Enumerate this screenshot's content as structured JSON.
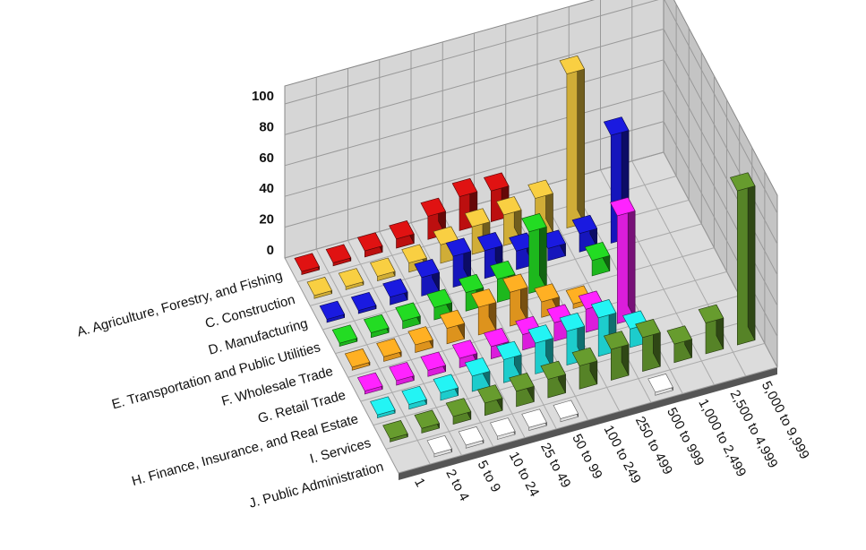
{
  "chart_data": {
    "type": "bar3d",
    "categories": [
      "1",
      "2 to 4",
      "5 to 9",
      "10 to 24",
      "25 to 49",
      "50 to 99",
      "100 to 249",
      "250 to 499",
      "500 to 999",
      "1,000 to 2,499",
      "2,500 to 4,999",
      "5,000 to 9,999"
    ],
    "series": [
      {
        "name": "A. Agriculture, Forestry, and Fishing",
        "color": "#cc1010",
        "values": [
          2,
          2,
          4,
          6,
          15,
          22,
          20,
          null,
          null,
          null,
          null,
          null
        ]
      },
      {
        "name": "C. Construction",
        "color": "#e2bc3c",
        "values": [
          2,
          2,
          3,
          6,
          12,
          18,
          20,
          25,
          100,
          null,
          null,
          null
        ]
      },
      {
        "name": "D. Manufacturing",
        "color": "#1818cc",
        "values": [
          2,
          2,
          5,
          12,
          20,
          18,
          12,
          8,
          12,
          70,
          null,
          null
        ]
      },
      {
        "name": "E. Transportation and Public Utilities",
        "color": "#20c820",
        "values": [
          2,
          3,
          5,
          8,
          12,
          15,
          40,
          null,
          10,
          null,
          null,
          null
        ]
      },
      {
        "name": "F. Wholesale Trade",
        "color": "#f0a020",
        "values": [
          2,
          3,
          5,
          10,
          18,
          22,
          10,
          3,
          null,
          null,
          null,
          null
        ]
      },
      {
        "name": "G. Retail Trade",
        "color": "#ee20ee",
        "values": [
          2,
          3,
          4,
          6,
          8,
          10,
          12,
          15,
          70,
          null,
          null,
          null
        ]
      },
      {
        "name": "H. Finance, Insurance, and Real Estate",
        "color": "#20dede",
        "values": [
          2,
          3,
          5,
          10,
          15,
          20,
          22,
          25,
          12,
          null,
          null,
          null
        ]
      },
      {
        "name": "I. Services",
        "color": "#5e8e2a",
        "values": [
          2,
          3,
          5,
          8,
          10,
          12,
          15,
          20,
          22,
          12,
          20,
          100
        ]
      },
      {
        "name": "J. Public Administration",
        "color": "#f2f2f2",
        "values": [
          null,
          2,
          2,
          2,
          2,
          2,
          null,
          null,
          2,
          null,
          null,
          null
        ]
      }
    ],
    "ylim": [
      0,
      100
    ],
    "yticks": [
      0,
      20,
      40,
      60,
      80,
      100
    ],
    "grid": true
  }
}
